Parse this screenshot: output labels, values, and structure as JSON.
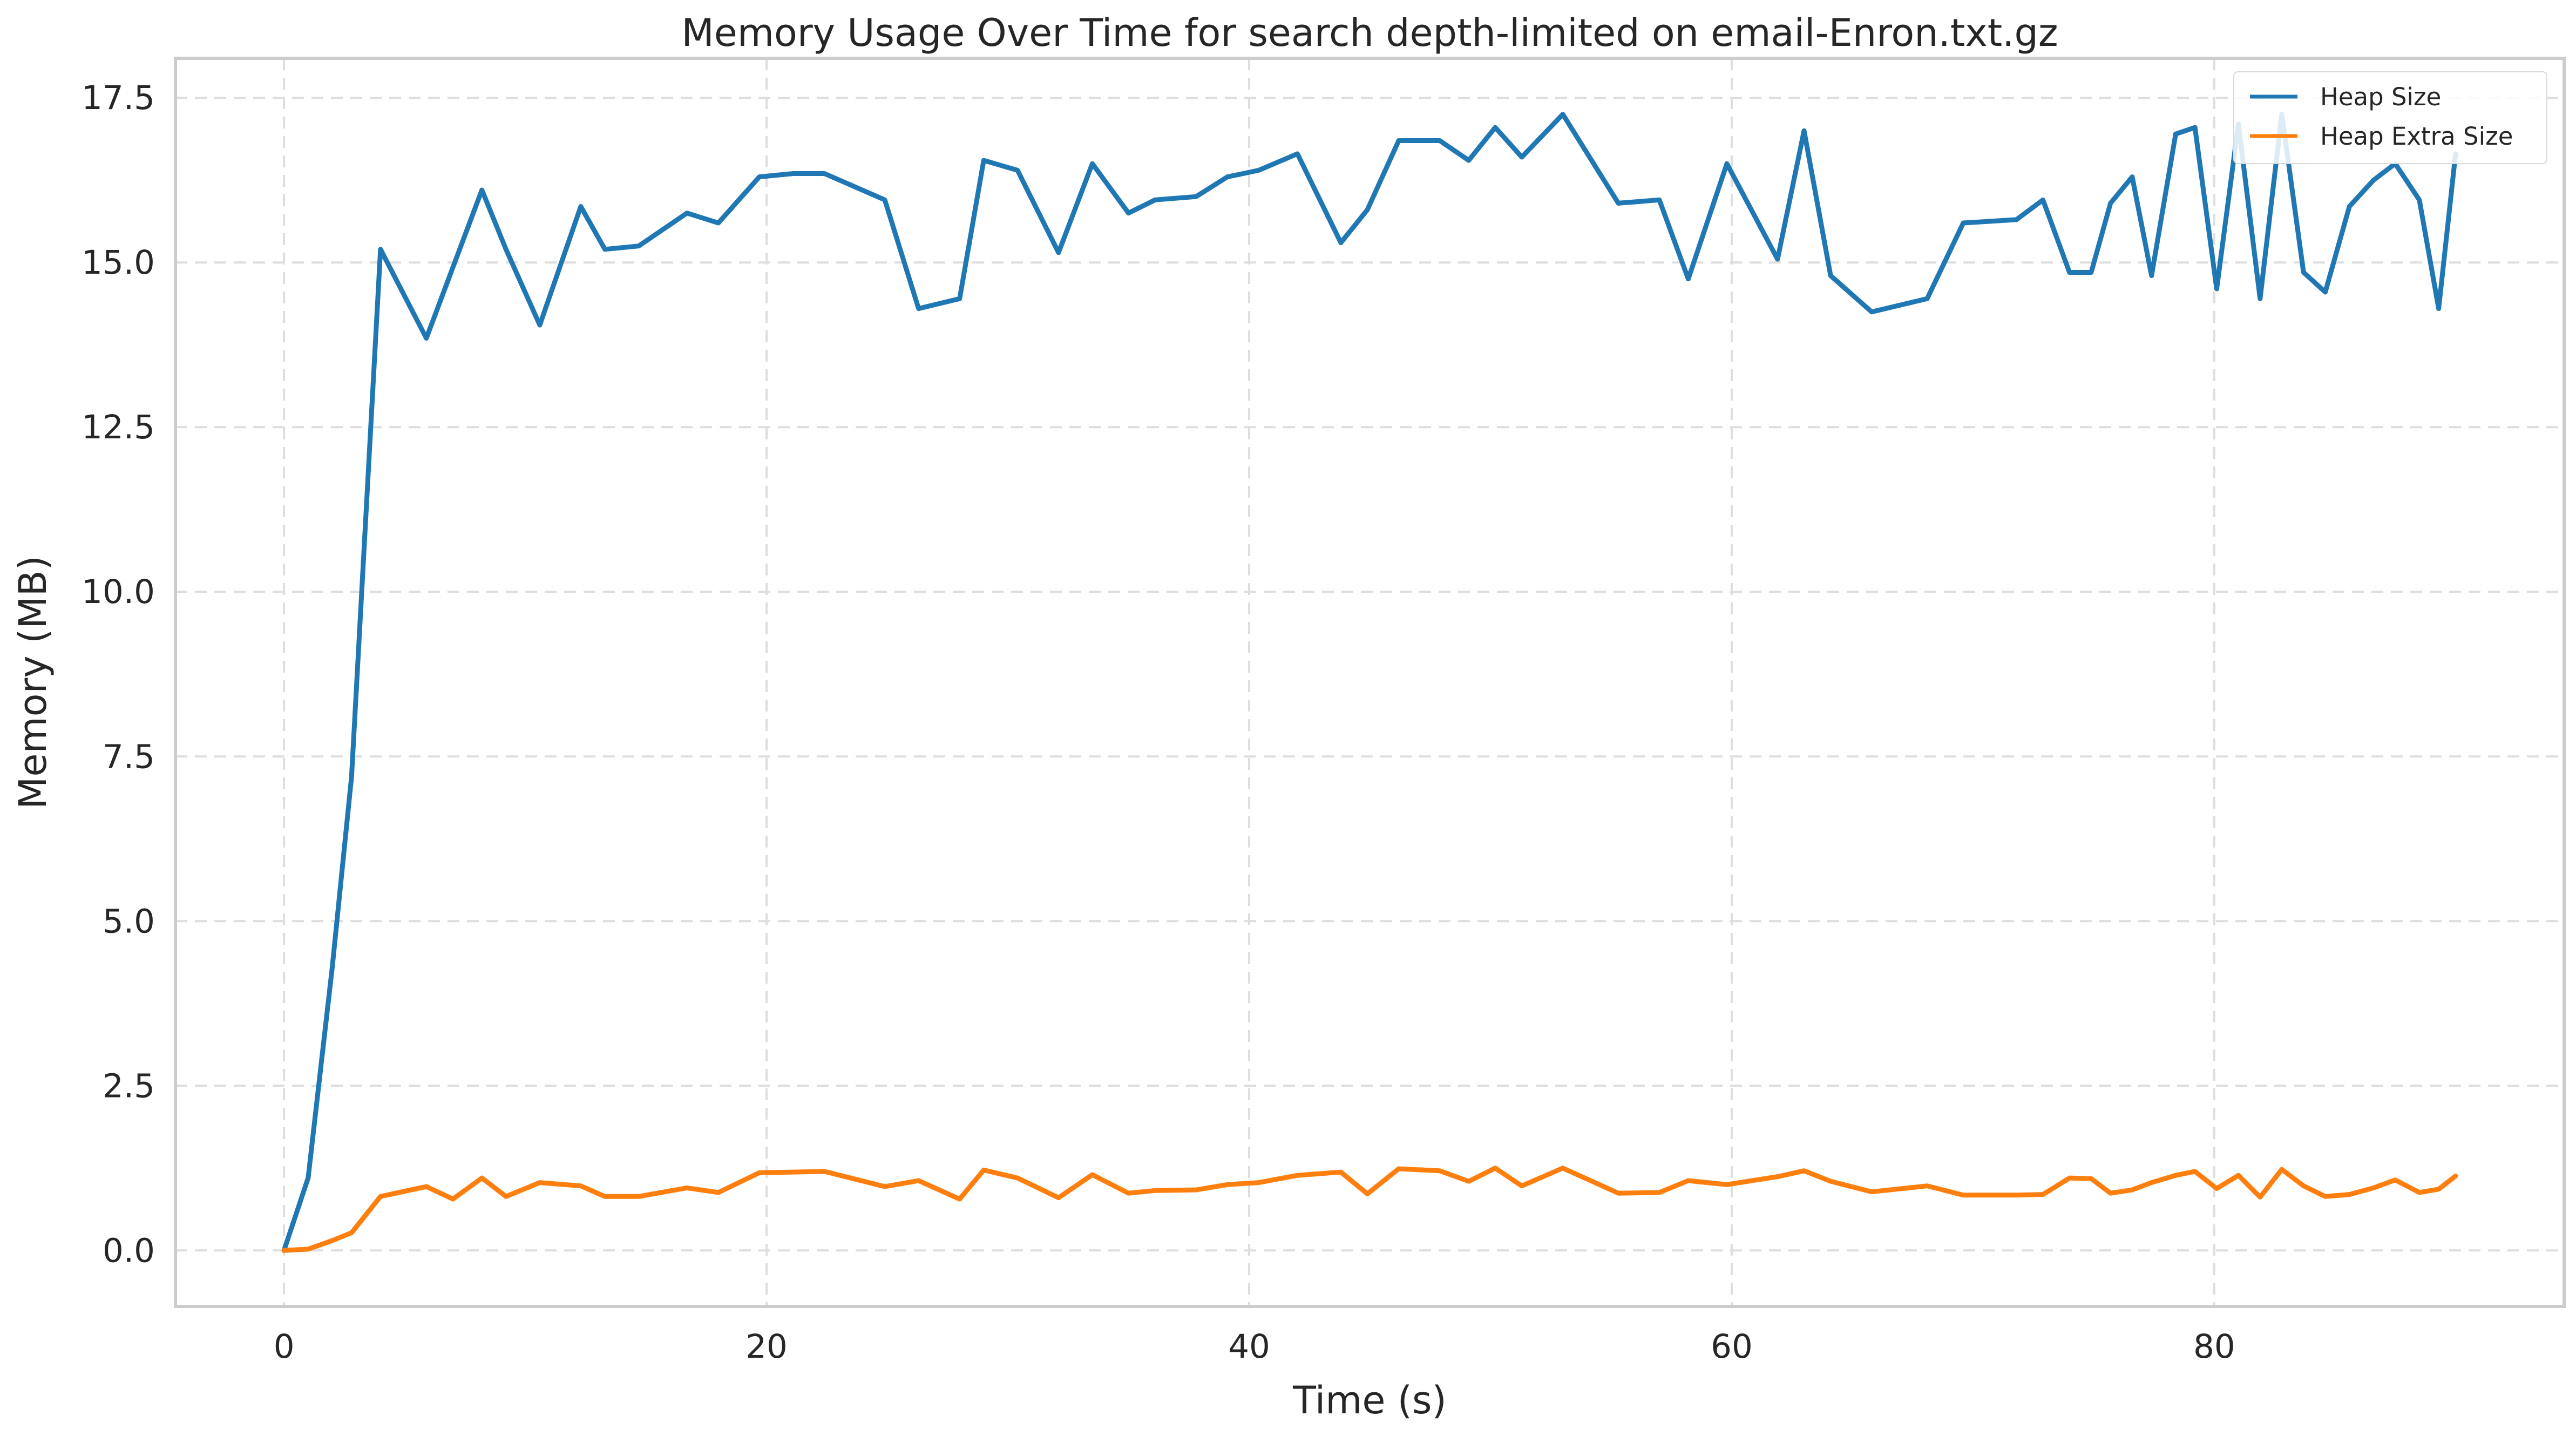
{
  "chart_data": {
    "type": "line",
    "title": "Memory Usage Over Time for search depth-limited on email-Enron.txt.gz",
    "xlabel": "Time (s)",
    "ylabel": "Memory (MB)",
    "xlim": [
      -4.5,
      94.5
    ],
    "ylim": [
      -0.85,
      18.1
    ],
    "xticks": [
      0,
      20,
      40,
      60,
      80
    ],
    "yticks": [
      0.0,
      2.5,
      5.0,
      7.5,
      10.0,
      12.5,
      15.0,
      17.5
    ],
    "grid": true,
    "legend_position": "top-right",
    "series": [
      {
        "name": "Heap Size",
        "color": "#1f77b4",
        "x": [
          0,
          1.0,
          2.0,
          2.8,
          4.0,
          5.9,
          8.2,
          9.2,
          10.6,
          12.3,
          13.3,
          14.7,
          16.7,
          18.0,
          19.7,
          21.1,
          22.4,
          24.9,
          26.3,
          28.0,
          29.0,
          30.4,
          32.1,
          33.5,
          35.0,
          36.1,
          37.8,
          39.1,
          40.4,
          42.0,
          43.8,
          44.9,
          46.2,
          47.9,
          49.1,
          50.2,
          51.3,
          53.0,
          55.3,
          57.0,
          58.2,
          59.8,
          61.9,
          63.0,
          64.1,
          65.8,
          68.1,
          69.6,
          71.8,
          72.9,
          74.0,
          74.9,
          75.7,
          76.6,
          77.4,
          78.4,
          79.2,
          80.1,
          81.0,
          81.9,
          82.8,
          83.7,
          84.6,
          85.6,
          86.6,
          87.5,
          88.5,
          89.3,
          90.0
        ],
        "values": [
          0.0,
          1.1,
          4.3,
          7.2,
          15.2,
          13.85,
          16.1,
          15.2,
          14.05,
          15.85,
          15.2,
          15.25,
          15.75,
          15.6,
          16.3,
          16.35,
          16.35,
          15.95,
          14.3,
          14.45,
          16.55,
          16.4,
          15.15,
          16.5,
          15.75,
          15.95,
          16.0,
          16.3,
          16.4,
          16.65,
          15.3,
          15.8,
          16.85,
          16.85,
          16.55,
          17.05,
          16.6,
          17.25,
          15.9,
          15.95,
          14.75,
          16.5,
          15.05,
          17.0,
          14.8,
          14.25,
          14.45,
          15.6,
          15.65,
          15.95,
          14.85,
          14.85,
          15.9,
          16.3,
          14.8,
          16.95,
          17.05,
          14.6,
          17.1,
          14.45,
          17.25,
          14.85,
          14.55,
          15.85,
          16.25,
          16.5,
          15.95,
          14.3,
          16.65
        ]
      },
      {
        "name": "Heap Extra Size",
        "color": "#ff7f0e",
        "x": [
          0,
          1.0,
          2.0,
          2.8,
          4.0,
          5.9,
          7.0,
          8.2,
          9.2,
          10.6,
          12.3,
          13.3,
          14.7,
          16.7,
          18.0,
          19.7,
          21.1,
          22.4,
          24.9,
          26.3,
          28.0,
          29.0,
          30.4,
          32.1,
          33.5,
          35.0,
          36.1,
          37.8,
          39.1,
          40.4,
          42.0,
          43.8,
          44.9,
          46.2,
          47.9,
          49.1,
          50.2,
          51.3,
          53.0,
          55.3,
          57.0,
          58.2,
          59.8,
          61.9,
          63.0,
          64.1,
          65.8,
          68.1,
          69.6,
          71.8,
          72.9,
          74.0,
          74.9,
          75.7,
          76.6,
          77.4,
          78.4,
          79.2,
          80.1,
          81.0,
          81.9,
          82.8,
          83.7,
          84.6,
          85.6,
          86.6,
          87.5,
          88.5,
          89.3,
          90.0
        ],
        "values": [
          0.0,
          0.02,
          0.15,
          0.27,
          0.82,
          0.97,
          0.78,
          1.1,
          0.82,
          1.03,
          0.98,
          0.82,
          0.82,
          0.95,
          0.88,
          1.18,
          1.19,
          1.2,
          0.97,
          1.06,
          0.78,
          1.22,
          1.1,
          0.8,
          1.15,
          0.87,
          0.91,
          0.92,
          1.0,
          1.03,
          1.14,
          1.19,
          0.86,
          1.24,
          1.21,
          1.05,
          1.25,
          0.98,
          1.25,
          0.87,
          0.88,
          1.06,
          1.0,
          1.12,
          1.21,
          1.05,
          0.89,
          0.98,
          0.84,
          0.84,
          0.85,
          1.1,
          1.09,
          0.87,
          0.92,
          1.03,
          1.14,
          1.2,
          0.94,
          1.14,
          0.81,
          1.23,
          0.98,
          0.82,
          0.85,
          0.95,
          1.07,
          0.88,
          0.93,
          1.13
        ]
      }
    ]
  }
}
